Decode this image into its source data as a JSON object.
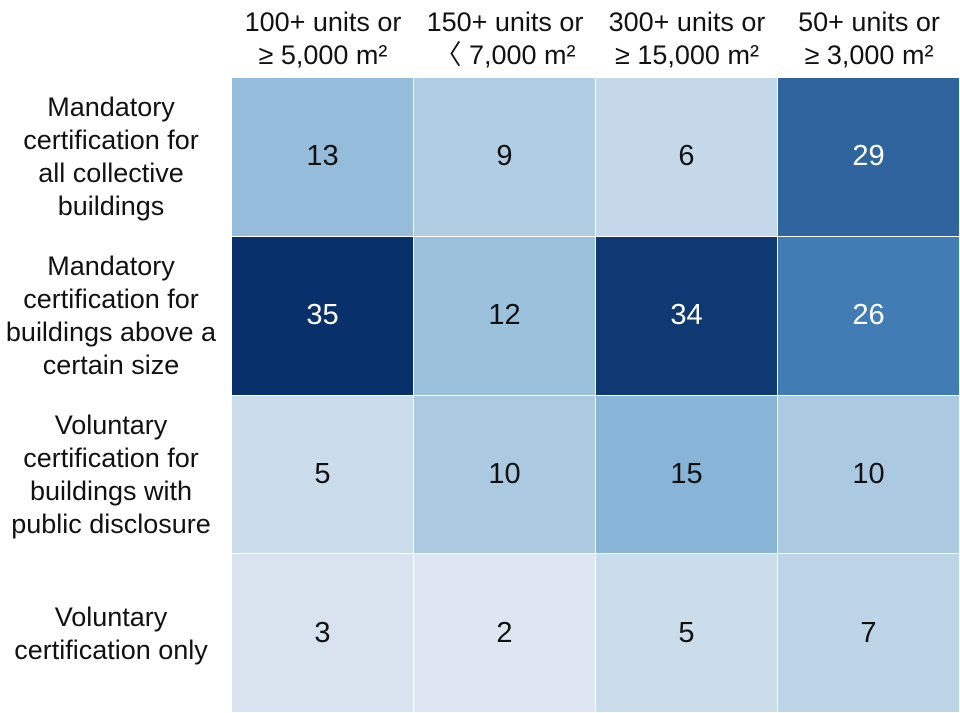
{
  "chart_data": {
    "type": "heatmap",
    "x_categories": [
      "100+ units or\n≥ 5,000 m²",
      "150+ units or\n〈 7,000 m²",
      "300+ units or\n≥ 15,000 m²",
      "50+ units or\n≥ 3,000 m²"
    ],
    "y_categories": [
      "Mandatory\ncertification for\nall collective\nbuildings",
      "Mandatory\ncertification for\nbuildings above a\ncertain size",
      "Voluntary\ncertification for\nbuildings with\npublic disclosure",
      "Voluntary\ncertification only"
    ],
    "values": [
      [
        13,
        9,
        6,
        29
      ],
      [
        35,
        12,
        34,
        26
      ],
      [
        5,
        10,
        15,
        10
      ],
      [
        3,
        2,
        5,
        7
      ]
    ],
    "colorscale": [
      "#dee7f1",
      "#a9c8e1",
      "#6ea6d0",
      "#3d78b1",
      "#08306b"
    ]
  }
}
